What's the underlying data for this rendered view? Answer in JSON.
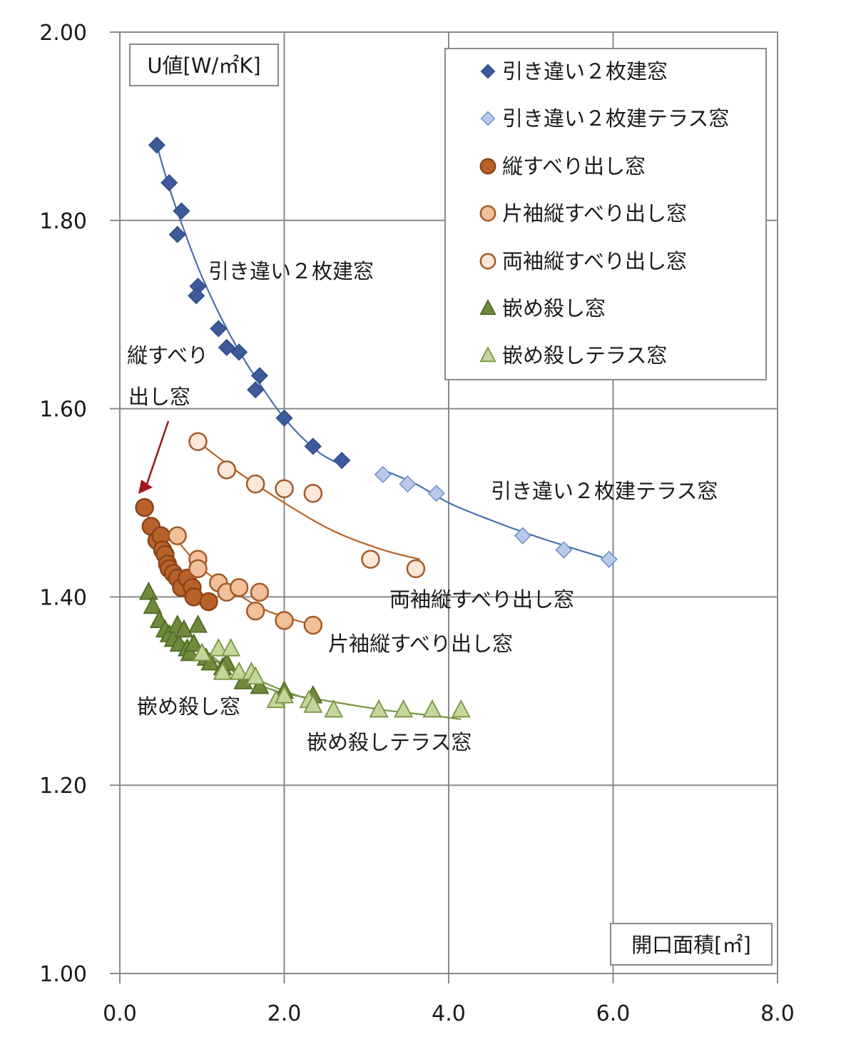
{
  "chart_data": {
    "type": "scatter",
    "ylabel": "U値[W/㎡K]",
    "xlabel": "開口面積[㎡]",
    "xlim": [
      0,
      8
    ],
    "ylim": [
      1.0,
      2.0
    ],
    "x_ticks": [
      "0.0",
      "2.0",
      "4.0",
      "6.0",
      "8.0"
    ],
    "y_ticks": [
      "1.00",
      "1.20",
      "1.40",
      "1.60",
      "1.80",
      "2.00"
    ],
    "grid": true,
    "legend_position": "top-right",
    "series": [
      {
        "name": "引き違い２枚建窓",
        "marker": "diamond",
        "fill": "#3d5a9a",
        "stroke": "#2f4a85",
        "x": [
          0.45,
          0.6,
          0.75,
          0.7,
          0.95,
          0.93,
          1.2,
          1.3,
          1.45,
          1.7,
          1.65,
          2.0,
          2.35,
          2.7
        ],
        "y": [
          1.88,
          1.84,
          1.81,
          1.785,
          1.73,
          1.72,
          1.685,
          1.665,
          1.66,
          1.635,
          1.62,
          1.59,
          1.56,
          1.545
        ],
        "fit_x": [
          0.45,
          0.6,
          0.8,
          1.0,
          1.3,
          1.6,
          2.0,
          2.4,
          2.7
        ],
        "fit_y": [
          1.88,
          1.835,
          1.785,
          1.74,
          1.685,
          1.64,
          1.59,
          1.555,
          1.54
        ]
      },
      {
        "name": "引き違い２枚建テラス窓",
        "marker": "diamond",
        "fill": "#b8c9ea",
        "stroke": "#6f8fc9",
        "x": [
          3.2,
          3.5,
          3.85,
          4.9,
          5.4,
          5.95
        ],
        "y": [
          1.53,
          1.52,
          1.51,
          1.465,
          1.45,
          1.44
        ],
        "fit_x": [
          3.2,
          3.6,
          4.0,
          4.5,
          5.0,
          5.5,
          5.95
        ],
        "fit_y": [
          1.535,
          1.52,
          1.5,
          1.482,
          1.466,
          1.452,
          1.44
        ]
      },
      {
        "name": "縦すべり出し窓",
        "marker": "circle",
        "fill": "#b8622a",
        "stroke": "#8a4418",
        "x": [
          0.3,
          0.38,
          0.45,
          0.5,
          0.52,
          0.55,
          0.58,
          0.6,
          0.65,
          0.7,
          0.75,
          0.82,
          0.88,
          0.9,
          1.08
        ],
        "y": [
          1.495,
          1.475,
          1.46,
          1.465,
          1.45,
          1.445,
          1.435,
          1.43,
          1.425,
          1.42,
          1.41,
          1.42,
          1.41,
          1.4,
          1.395
        ],
        "fit_x": [
          0.3,
          0.5,
          0.7,
          0.9,
          1.1
        ],
        "fit_y": [
          1.495,
          1.455,
          1.43,
          1.41,
          1.395
        ]
      },
      {
        "name": "片袖縦すべり出し窓",
        "marker": "circle",
        "fill": "#f2c09a",
        "stroke": "#a45a28",
        "x": [
          0.7,
          0.95,
          0.95,
          1.2,
          1.3,
          1.45,
          1.65,
          1.7,
          2.0,
          2.35
        ],
        "y": [
          1.465,
          1.44,
          1.43,
          1.415,
          1.405,
          1.41,
          1.385,
          1.405,
          1.375,
          1.37
        ],
        "fit_x": [
          0.7,
          1.0,
          1.4,
          1.8,
          2.35
        ],
        "fit_y": [
          1.46,
          1.43,
          1.405,
          1.385,
          1.37
        ]
      },
      {
        "name": "両袖縦すべり出し窓",
        "marker": "circle",
        "fill": "#fce8da",
        "stroke": "#a45a28",
        "x": [
          0.95,
          1.3,
          1.65,
          2.0,
          2.35,
          3.05,
          3.6
        ],
        "y": [
          1.565,
          1.535,
          1.52,
          1.515,
          1.51,
          1.44,
          1.43
        ],
        "fit_x": [
          0.95,
          1.4,
          2.0,
          2.6,
          3.2,
          3.65
        ],
        "fit_y": [
          1.565,
          1.535,
          1.5,
          1.47,
          1.45,
          1.44
        ]
      },
      {
        "name": "嵌め殺し窓",
        "marker": "triangle",
        "fill": "#6f8a3c",
        "stroke": "#4f6a24",
        "x": [
          0.35,
          0.4,
          0.48,
          0.55,
          0.6,
          0.65,
          0.7,
          0.72,
          0.78,
          0.82,
          0.85,
          0.9,
          0.95,
          1.0,
          1.05,
          1.1,
          1.25,
          1.3,
          1.5,
          1.7,
          2.0,
          2.35
        ],
        "y": [
          1.405,
          1.39,
          1.375,
          1.365,
          1.36,
          1.355,
          1.37,
          1.35,
          1.365,
          1.345,
          1.34,
          1.35,
          1.37,
          1.34,
          1.335,
          1.33,
          1.325,
          1.33,
          1.31,
          1.305,
          1.3,
          1.295
        ],
        "fit_x": [
          0.35,
          0.6,
          0.9,
          1.2,
          1.6,
          2.0,
          2.35
        ],
        "fit_y": [
          1.4,
          1.365,
          1.345,
          1.33,
          1.315,
          1.3,
          1.29
        ]
      },
      {
        "name": "嵌め殺しテラス窓",
        "marker": "triangle",
        "fill": "#c4d79b",
        "stroke": "#7a9445",
        "x": [
          1.0,
          1.2,
          1.35,
          1.25,
          1.45,
          1.6,
          1.65,
          1.9,
          2.0,
          2.3,
          2.35,
          2.6,
          3.15,
          3.45,
          3.8,
          4.15
        ],
        "y": [
          1.34,
          1.345,
          1.345,
          1.32,
          1.32,
          1.32,
          1.315,
          1.29,
          1.295,
          1.29,
          1.285,
          1.28,
          1.28,
          1.28,
          1.28,
          1.28
        ],
        "fit_x": [
          1.0,
          1.4,
          1.9,
          2.5,
          3.2,
          3.8,
          4.15
        ],
        "fit_y": [
          1.345,
          1.32,
          1.3,
          1.29,
          1.28,
          1.274,
          1.27
        ]
      }
    ],
    "annotations": [
      {
        "text": "引き違い２枚建窓",
        "series": 0
      },
      {
        "text": "引き違い２枚建テラス窓",
        "series": 1
      },
      {
        "text": "縦すべり",
        "series": 2
      },
      {
        "text": "出し窓",
        "series": 2
      },
      {
        "text": "両袖縦すべり出し窓",
        "series": 4
      },
      {
        "text": "片袖縦すべり出し窓",
        "series": 3
      },
      {
        "text": "嵌め殺し窓",
        "series": 5
      },
      {
        "text": "嵌め殺しテラス窓",
        "series": 6
      }
    ],
    "arrow_color": "#a0151b"
  }
}
